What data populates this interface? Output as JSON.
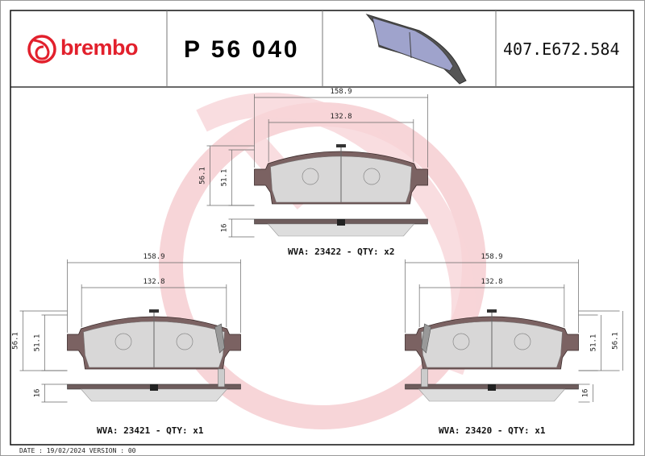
{
  "header": {
    "brand": "brembo",
    "part_number": "P 56 040",
    "reference_code": "407.E672.584"
  },
  "colors": {
    "brand_red": "#e2202c",
    "watermark": "#f7d5d8",
    "backing_plate": "#7b6262",
    "friction": "#e0e0e0",
    "preview_pad": "#9fa3cc"
  },
  "views": [
    {
      "id": "top",
      "width_outer": "158.9",
      "width_inner": "132.8",
      "height_outer": "56.1",
      "height_inner": "51.1",
      "thickness": "16",
      "label": "WVA: 23422 - QTY: x2",
      "sensor": "none"
    },
    {
      "id": "left",
      "width_outer": "158.9",
      "width_inner": "132.8",
      "height_outer": "56.1",
      "height_inner": "51.1",
      "thickness": "16",
      "label": "WVA: 23421 - QTY: x1",
      "sensor": "right"
    },
    {
      "id": "right",
      "width_outer": "158.9",
      "width_inner": "132.8",
      "height_outer": "56.1",
      "height_inner": "51.1",
      "thickness": "16",
      "label": "WVA: 23420 - QTY: x1",
      "sensor": "left"
    }
  ],
  "footer": {
    "date_version": "DATE : 19/02/2024 VERSION : 00"
  }
}
